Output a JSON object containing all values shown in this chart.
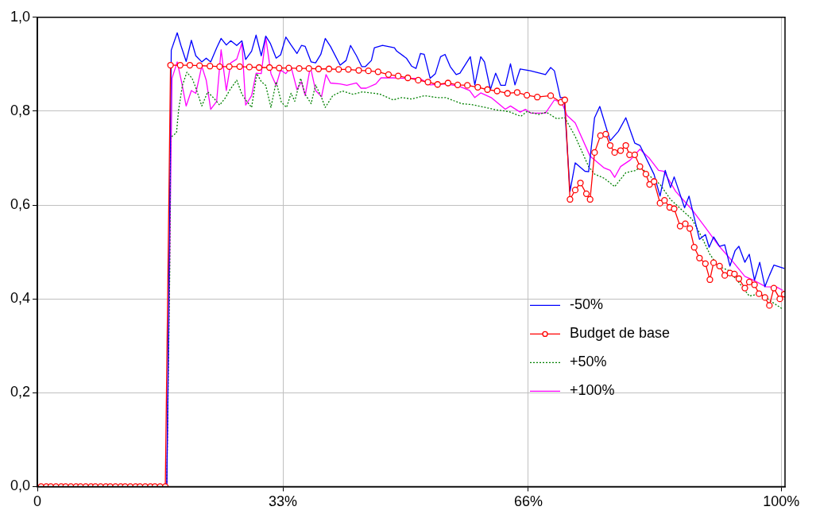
{
  "chart_data": {
    "type": "line",
    "xlim": [
      0,
      100.5
    ],
    "xticks": [
      0,
      {
        "value": 33,
        "label": "33%"
      },
      {
        "value": 66,
        "label": "66%"
      },
      {
        "value": 100,
        "label": "100%"
      }
    ],
    "ylim": [
      0,
      1
    ],
    "yticks": [
      {
        "value": 0,
        "label": "0,0"
      },
      {
        "value": 0.2,
        "label": "0,2"
      },
      {
        "value": 0.4,
        "label": "0,4"
      },
      {
        "value": 0.6,
        "label": "0,6"
      },
      {
        "value": 0.8,
        "label": "0,8"
      },
      {
        "value": 1,
        "label": "1,0"
      }
    ],
    "grid": true,
    "legend": "bottom right",
    "series": [
      {
        "name": "-50%",
        "color": "#0000ff",
        "x": [
          0,
          17.4,
          18.0,
          18.8,
          19.3,
          20.0,
          20.7,
          21.3,
          22.1,
          22.7,
          23.3,
          24.1,
          24.7,
          25.4,
          26.0,
          26.8,
          27.5,
          28.0,
          28.8,
          29.4,
          30.1,
          30.7,
          31.3,
          32.1,
          32.7,
          33.4,
          34.1,
          34.9,
          35.5,
          36.0,
          36.8,
          37.4,
          38.1,
          38.7,
          39.4,
          40.7,
          41.5,
          42.1,
          42.9,
          43.6,
          44.1,
          44.9,
          45.3,
          46.4,
          48.0,
          48.3,
          49.6,
          50.3,
          50.9,
          51.5,
          52.0,
          52.8,
          53.5,
          54.2,
          54.8,
          55.5,
          56.3,
          56.8,
          58.2,
          58.8,
          59.6,
          60.1,
          60.9,
          61.6,
          62.3,
          62.9,
          63.6,
          64.2,
          64.9,
          66.3,
          68.3,
          69.0,
          69.5,
          70.3,
          70.8,
          71.6,
          72.3,
          73.6,
          74.1,
          74.9,
          75.6,
          77.0,
          78.1,
          79.1,
          80.3,
          81.0,
          82.9,
          83.7,
          84.4,
          85.1,
          85.6,
          87.0,
          87.6,
          89.0,
          89.8,
          90.3,
          90.9,
          91.7,
          92.4,
          93.1,
          93.8,
          94.3,
          95.1,
          95.7,
          96.4,
          97.1,
          97.8,
          98.4,
          99.0,
          100.4
        ],
        "values": [
          0,
          0,
          0.93,
          0.967,
          0.94,
          0.906,
          0.951,
          0.918,
          0.905,
          0.913,
          0.905,
          0.935,
          0.955,
          0.941,
          0.95,
          0.94,
          0.95,
          0.91,
          0.928,
          0.962,
          0.918,
          0.96,
          0.945,
          0.913,
          0.92,
          0.958,
          0.941,
          0.923,
          0.94,
          0.938,
          0.905,
          0.903,
          0.921,
          0.955,
          0.938,
          0.898,
          0.908,
          0.94,
          0.918,
          0.895,
          0.895,
          0.908,
          0.935,
          0.94,
          0.935,
          0.928,
          0.913,
          0.896,
          0.891,
          0.923,
          0.921,
          0.87,
          0.88,
          0.916,
          0.921,
          0.895,
          0.878,
          0.881,
          0.916,
          0.856,
          0.916,
          0.905,
          0.846,
          0.881,
          0.855,
          0.855,
          0.901,
          0.856,
          0.89,
          0.886,
          0.878,
          0.893,
          0.886,
          0.829,
          0.829,
          0.629,
          0.69,
          0.672,
          0.671,
          0.786,
          0.81,
          0.737,
          0.757,
          0.786,
          0.732,
          0.727,
          0.665,
          0.619,
          0.674,
          0.637,
          0.66,
          0.594,
          0.619,
          0.527,
          0.537,
          0.51,
          0.532,
          0.512,
          0.515,
          0.47,
          0.503,
          0.512,
          0.478,
          0.495,
          0.44,
          0.478,
          0.426,
          0.45,
          0.472,
          0.465
        ]
      },
      {
        "name": "Budget de base",
        "color": "#ff0000",
        "marker": "circle",
        "x": [
          0.5,
          1.2,
          1.8,
          2.5,
          3.2,
          3.8,
          4.5,
          5.2,
          5.8,
          6.5,
          7.2,
          7.8,
          8.5,
          9.2,
          9.8,
          10.5,
          11.2,
          11.8,
          12.5,
          13.2,
          13.8,
          14.5,
          15.2,
          15.8,
          16.5,
          17.2,
          17.9,
          19.2,
          20.5,
          21.8,
          23.2,
          24.5,
          25.8,
          27.2,
          28.5,
          29.8,
          31.2,
          32.5,
          33.8,
          35.2,
          36.5,
          37.8,
          39.2,
          40.5,
          41.8,
          43.2,
          44.5,
          45.8,
          47.2,
          48.5,
          49.8,
          51.2,
          52.5,
          53.8,
          55.2,
          56.5,
          57.8,
          59.2,
          60.5,
          61.8,
          63.2,
          64.5,
          65.8,
          67.2,
          69.0,
          70.4,
          70.9,
          71.6,
          72.3,
          73.0,
          73.8,
          74.3,
          74.9,
          75.7,
          76.4,
          77.0,
          77.6,
          78.4,
          79.1,
          79.6,
          80.3,
          81.0,
          81.8,
          82.3,
          82.9,
          83.7,
          84.3,
          85.0,
          85.6,
          86.4,
          87.1,
          87.7,
          88.3,
          89.0,
          89.8,
          90.4,
          90.9,
          91.7,
          92.4,
          93.1,
          93.7,
          94.3,
          95.1,
          95.7,
          96.4,
          97.0,
          97.8,
          98.4,
          99.0,
          99.8,
          100.4
        ],
        "values": [
          0,
          0,
          0,
          0,
          0,
          0,
          0,
          0,
          0,
          0,
          0,
          0,
          0,
          0,
          0,
          0,
          0,
          0,
          0,
          0,
          0,
          0,
          0,
          0,
          0,
          0,
          0.898,
          0.898,
          0.898,
          0.897,
          0.896,
          0.895,
          0.895,
          0.895,
          0.894,
          0.893,
          0.893,
          0.892,
          0.892,
          0.891,
          0.891,
          0.89,
          0.89,
          0.889,
          0.889,
          0.887,
          0.886,
          0.884,
          0.878,
          0.875,
          0.871,
          0.866,
          0.862,
          0.857,
          0.86,
          0.856,
          0.855,
          0.851,
          0.846,
          0.843,
          0.838,
          0.84,
          0.834,
          0.83,
          0.833,
          0.819,
          0.824,
          0.612,
          0.632,
          0.647,
          0.624,
          0.612,
          0.712,
          0.748,
          0.751,
          0.727,
          0.712,
          0.716,
          0.727,
          0.707,
          0.707,
          0.682,
          0.666,
          0.644,
          0.65,
          0.604,
          0.61,
          0.595,
          0.592,
          0.555,
          0.56,
          0.55,
          0.51,
          0.487,
          0.475,
          0.441,
          0.477,
          0.47,
          0.45,
          0.455,
          0.453,
          0.443,
          0.423,
          0.436,
          0.43,
          0.411,
          0.403,
          0.386,
          0.423,
          0.4,
          0.41
        ]
      },
      {
        "name": "+50%",
        "color": "#008000",
        "line_style": "dotted",
        "x": [
          0,
          17.4,
          17.8,
          17.9,
          18.7,
          19.0,
          19.5,
          20.1,
          20.8,
          21.3,
          22.1,
          22.9,
          23.7,
          24.5,
          25.3,
          25.9,
          26.8,
          27.5,
          28.0,
          28.8,
          29.5,
          30.1,
          30.7,
          31.4,
          32.1,
          32.8,
          33.5,
          34.1,
          34.6,
          35.4,
          36.0,
          36.8,
          37.4,
          38.2,
          38.7,
          39.7,
          41.0,
          42.4,
          43.7,
          45.3,
          46.1,
          47.8,
          49.0,
          50.3,
          52.0,
          53.8,
          54.9,
          57.0,
          58.4,
          60.2,
          61.6,
          63.4,
          65.0,
          65.8,
          67.4,
          68.4,
          69.8,
          70.9,
          72.3,
          74.1,
          74.9,
          76.2,
          77.6,
          79.1,
          80.5,
          81.0,
          82.3,
          83.7,
          85.1,
          86.6,
          88.0,
          89.3,
          90.4,
          91.5,
          93.0,
          94.3,
          95.7,
          97.2,
          98.6,
          100.2
        ],
        "values": [
          0,
          0,
          0.46,
          0.744,
          0.754,
          0.804,
          0.855,
          0.883,
          0.87,
          0.85,
          0.811,
          0.841,
          0.828,
          0.813,
          0.829,
          0.846,
          0.866,
          0.836,
          0.824,
          0.808,
          0.88,
          0.863,
          0.855,
          0.808,
          0.863,
          0.819,
          0.808,
          0.838,
          0.821,
          0.87,
          0.836,
          0.816,
          0.856,
          0.829,
          0.808,
          0.833,
          0.843,
          0.836,
          0.841,
          0.838,
          0.836,
          0.824,
          0.829,
          0.826,
          0.833,
          0.829,
          0.829,
          0.816,
          0.814,
          0.808,
          0.803,
          0.799,
          0.789,
          0.799,
          0.793,
          0.798,
          0.784,
          0.786,
          0.746,
          0.682,
          0.666,
          0.657,
          0.639,
          0.669,
          0.674,
          0.682,
          0.662,
          0.644,
          0.612,
          0.59,
          0.57,
          0.532,
          0.495,
          0.47,
          0.46,
          0.435,
          0.406,
          0.411,
          0.395,
          0.378
        ]
      },
      {
        "name": "+100%",
        "color": "#ff00ff",
        "x": [
          0,
          17.4,
          18.1,
          18.8,
          19.4,
          20.0,
          20.7,
          21.3,
          22.1,
          22.7,
          23.3,
          24.1,
          24.7,
          25.4,
          26.0,
          26.8,
          27.5,
          28.0,
          28.8,
          29.4,
          30.1,
          30.7,
          31.4,
          32.1,
          32.7,
          33.4,
          34.1,
          34.9,
          35.5,
          36.0,
          36.7,
          37.4,
          38.2,
          38.8,
          39.4,
          40.7,
          41.6,
          42.9,
          43.5,
          44.2,
          45.5,
          46.2,
          47.8,
          49.6,
          51.4,
          52.8,
          54.9,
          56.7,
          58.1,
          58.8,
          59.6,
          61.0,
          62.9,
          63.6,
          64.9,
          65.6,
          66.3,
          68.3,
          69.5,
          70.5,
          71.2,
          72.3,
          74.3,
          76.2,
          77.0,
          77.6,
          78.4,
          79.7,
          81.0,
          82.3,
          83.5,
          84.2,
          85.8,
          88.0,
          89.8,
          91.5,
          93.6,
          95.1,
          96.5,
          97.9,
          99.4,
          100.2
        ],
        "values": [
          0,
          0,
          0.87,
          0.905,
          0.861,
          0.811,
          0.844,
          0.838,
          0.896,
          0.866,
          0.804,
          0.821,
          0.931,
          0.844,
          0.903,
          0.911,
          0.945,
          0.813,
          0.833,
          0.881,
          0.88,
          0.957,
          0.88,
          0.855,
          0.888,
          0.88,
          0.895,
          0.846,
          0.863,
          0.833,
          0.895,
          0.844,
          0.831,
          0.878,
          0.86,
          0.858,
          0.855,
          0.86,
          0.849,
          0.849,
          0.858,
          0.871,
          0.871,
          0.87,
          0.87,
          0.856,
          0.858,
          0.853,
          0.844,
          0.829,
          0.839,
          0.829,
          0.804,
          0.811,
          0.798,
          0.804,
          0.796,
          0.796,
          0.824,
          0.818,
          0.791,
          0.775,
          0.704,
          0.679,
          0.674,
          0.659,
          0.682,
          0.696,
          0.719,
          0.699,
          0.674,
          0.672,
          0.629,
          0.59,
          0.552,
          0.515,
          0.477,
          0.448,
          0.438,
          0.426,
          0.425,
          0.418
        ]
      }
    ]
  }
}
